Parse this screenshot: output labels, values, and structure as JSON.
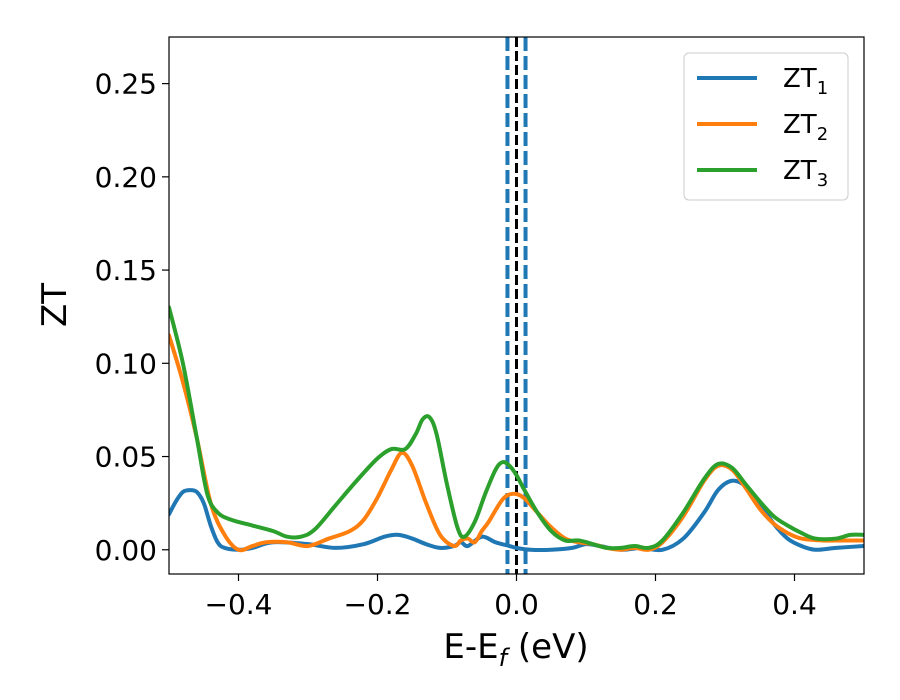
{
  "chart_data": {
    "type": "line",
    "title": "",
    "xlabel": "E-E_f (eV)",
    "xlabel_base": "E-E",
    "xlabel_sub": "f",
    "xlabel_suffix": " (eV)",
    "ylabel": "ZT",
    "xlim": [
      -0.5,
      0.5
    ],
    "ylim": [
      -0.013,
      0.275
    ],
    "xticks": [
      -0.4,
      -0.2,
      0.0,
      0.2,
      0.4
    ],
    "xtick_labels": [
      "−0.4",
      "−0.2",
      "0.0",
      "0.2",
      "0.4"
    ],
    "yticks": [
      0.0,
      0.05,
      0.1,
      0.15,
      0.2,
      0.25
    ],
    "ytick_labels": [
      "0.00",
      "0.05",
      "0.10",
      "0.15",
      "0.20",
      "0.25"
    ],
    "grid": false,
    "legend_position": "top-right",
    "series": [
      {
        "name": "ZT1",
        "label_base": "ZT",
        "label_sub": "1",
        "color": "#1f77b4",
        "points": [
          [
            -0.5,
            0.019
          ],
          [
            -0.49,
            0.026
          ],
          [
            -0.48,
            0.031
          ],
          [
            -0.47,
            0.032
          ],
          [
            -0.46,
            0.031
          ],
          [
            -0.45,
            0.025
          ],
          [
            -0.44,
            0.013
          ],
          [
            -0.43,
            0.004
          ],
          [
            -0.42,
            0.001
          ],
          [
            -0.4,
            0.0
          ],
          [
            -0.38,
            0.001
          ],
          [
            -0.35,
            0.004
          ],
          [
            -0.3,
            0.003
          ],
          [
            -0.26,
            0.001
          ],
          [
            -0.22,
            0.003
          ],
          [
            -0.19,
            0.007
          ],
          [
            -0.17,
            0.008
          ],
          [
            -0.15,
            0.006
          ],
          [
            -0.13,
            0.003
          ],
          [
            -0.11,
            0.001
          ],
          [
            -0.09,
            0.002
          ],
          [
            -0.08,
            0.004
          ],
          [
            -0.07,
            0.002
          ],
          [
            -0.05,
            0.007
          ],
          [
            -0.03,
            0.004
          ],
          [
            -0.01,
            0.002
          ],
          [
            0.0,
            0.001
          ],
          [
            0.02,
            0.0
          ],
          [
            0.05,
            0.0
          ],
          [
            0.08,
            0.001
          ],
          [
            0.1,
            0.003
          ],
          [
            0.12,
            0.002
          ],
          [
            0.15,
            0.0
          ],
          [
            0.18,
            0.001
          ],
          [
            0.21,
            0.0
          ],
          [
            0.24,
            0.006
          ],
          [
            0.27,
            0.02
          ],
          [
            0.29,
            0.032
          ],
          [
            0.31,
            0.037
          ],
          [
            0.33,
            0.034
          ],
          [
            0.35,
            0.025
          ],
          [
            0.37,
            0.014
          ],
          [
            0.39,
            0.006
          ],
          [
            0.41,
            0.002
          ],
          [
            0.43,
            0.0
          ],
          [
            0.46,
            0.001
          ],
          [
            0.5,
            0.002
          ]
        ]
      },
      {
        "name": "ZT2",
        "label_base": "ZT",
        "label_sub": "2",
        "color": "#ff7f0e",
        "points": [
          [
            -0.5,
            0.115
          ],
          [
            -0.48,
            0.09
          ],
          [
            -0.46,
            0.06
          ],
          [
            -0.44,
            0.025
          ],
          [
            -0.42,
            0.008
          ],
          [
            -0.4,
            0.0
          ],
          [
            -0.38,
            0.002
          ],
          [
            -0.36,
            0.004
          ],
          [
            -0.33,
            0.004
          ],
          [
            -0.3,
            0.002
          ],
          [
            -0.27,
            0.006
          ],
          [
            -0.24,
            0.01
          ],
          [
            -0.22,
            0.016
          ],
          [
            -0.2,
            0.028
          ],
          [
            -0.18,
            0.043
          ],
          [
            -0.165,
            0.052
          ],
          [
            -0.15,
            0.045
          ],
          [
            -0.13,
            0.025
          ],
          [
            -0.11,
            0.008
          ],
          [
            -0.09,
            0.002
          ],
          [
            -0.08,
            0.005
          ],
          [
            -0.07,
            0.006
          ],
          [
            -0.06,
            0.004
          ],
          [
            -0.05,
            0.01
          ],
          [
            -0.04,
            0.015
          ],
          [
            -0.02,
            0.027
          ],
          [
            -0.005,
            0.03
          ],
          [
            0.01,
            0.028
          ],
          [
            0.03,
            0.02
          ],
          [
            0.05,
            0.012
          ],
          [
            0.07,
            0.006
          ],
          [
            0.09,
            0.004
          ],
          [
            0.11,
            0.003
          ],
          [
            0.13,
            0.001
          ],
          [
            0.15,
            0.0
          ],
          [
            0.17,
            0.001
          ],
          [
            0.19,
            0.0
          ],
          [
            0.21,
            0.004
          ],
          [
            0.24,
            0.018
          ],
          [
            0.27,
            0.037
          ],
          [
            0.29,
            0.045
          ],
          [
            0.31,
            0.043
          ],
          [
            0.33,
            0.033
          ],
          [
            0.35,
            0.022
          ],
          [
            0.37,
            0.014
          ],
          [
            0.39,
            0.009
          ],
          [
            0.41,
            0.006
          ],
          [
            0.44,
            0.005
          ],
          [
            0.47,
            0.005
          ],
          [
            0.5,
            0.005
          ]
        ]
      },
      {
        "name": "ZT3",
        "label_base": "ZT",
        "label_sub": "3",
        "color": "#2ca02c",
        "points": [
          [
            -0.5,
            0.13
          ],
          [
            -0.48,
            0.1
          ],
          [
            -0.46,
            0.06
          ],
          [
            -0.445,
            0.03
          ],
          [
            -0.43,
            0.02
          ],
          [
            -0.41,
            0.016
          ],
          [
            -0.38,
            0.013
          ],
          [
            -0.35,
            0.01
          ],
          [
            -0.33,
            0.007
          ],
          [
            -0.31,
            0.007
          ],
          [
            -0.29,
            0.011
          ],
          [
            -0.26,
            0.024
          ],
          [
            -0.23,
            0.037
          ],
          [
            -0.2,
            0.049
          ],
          [
            -0.18,
            0.054
          ],
          [
            -0.16,
            0.054
          ],
          [
            -0.145,
            0.062
          ],
          [
            -0.135,
            0.07
          ],
          [
            -0.125,
            0.071
          ],
          [
            -0.115,
            0.062
          ],
          [
            -0.1,
            0.035
          ],
          [
            -0.085,
            0.012
          ],
          [
            -0.075,
            0.007
          ],
          [
            -0.06,
            0.015
          ],
          [
            -0.045,
            0.03
          ],
          [
            -0.03,
            0.043
          ],
          [
            -0.02,
            0.047
          ],
          [
            -0.01,
            0.045
          ],
          [
            0.0,
            0.04
          ],
          [
            0.01,
            0.033
          ],
          [
            0.03,
            0.02
          ],
          [
            0.05,
            0.01
          ],
          [
            0.07,
            0.005
          ],
          [
            0.09,
            0.005
          ],
          [
            0.11,
            0.003
          ],
          [
            0.13,
            0.001
          ],
          [
            0.15,
            0.001
          ],
          [
            0.17,
            0.002
          ],
          [
            0.19,
            0.001
          ],
          [
            0.21,
            0.005
          ],
          [
            0.24,
            0.02
          ],
          [
            0.27,
            0.038
          ],
          [
            0.29,
            0.046
          ],
          [
            0.31,
            0.044
          ],
          [
            0.33,
            0.035
          ],
          [
            0.35,
            0.026
          ],
          [
            0.37,
            0.018
          ],
          [
            0.39,
            0.013
          ],
          [
            0.41,
            0.009
          ],
          [
            0.43,
            0.006
          ],
          [
            0.46,
            0.006
          ],
          [
            0.48,
            0.008
          ],
          [
            0.5,
            0.008
          ]
        ]
      }
    ],
    "vlines": [
      {
        "x": -0.013,
        "color": "#1f77b4",
        "style": "dashed"
      },
      {
        "x": 0.0,
        "color": "#000000",
        "style": "dashed"
      },
      {
        "x": 0.013,
        "color": "#1f77b4",
        "style": "dashed"
      }
    ]
  }
}
